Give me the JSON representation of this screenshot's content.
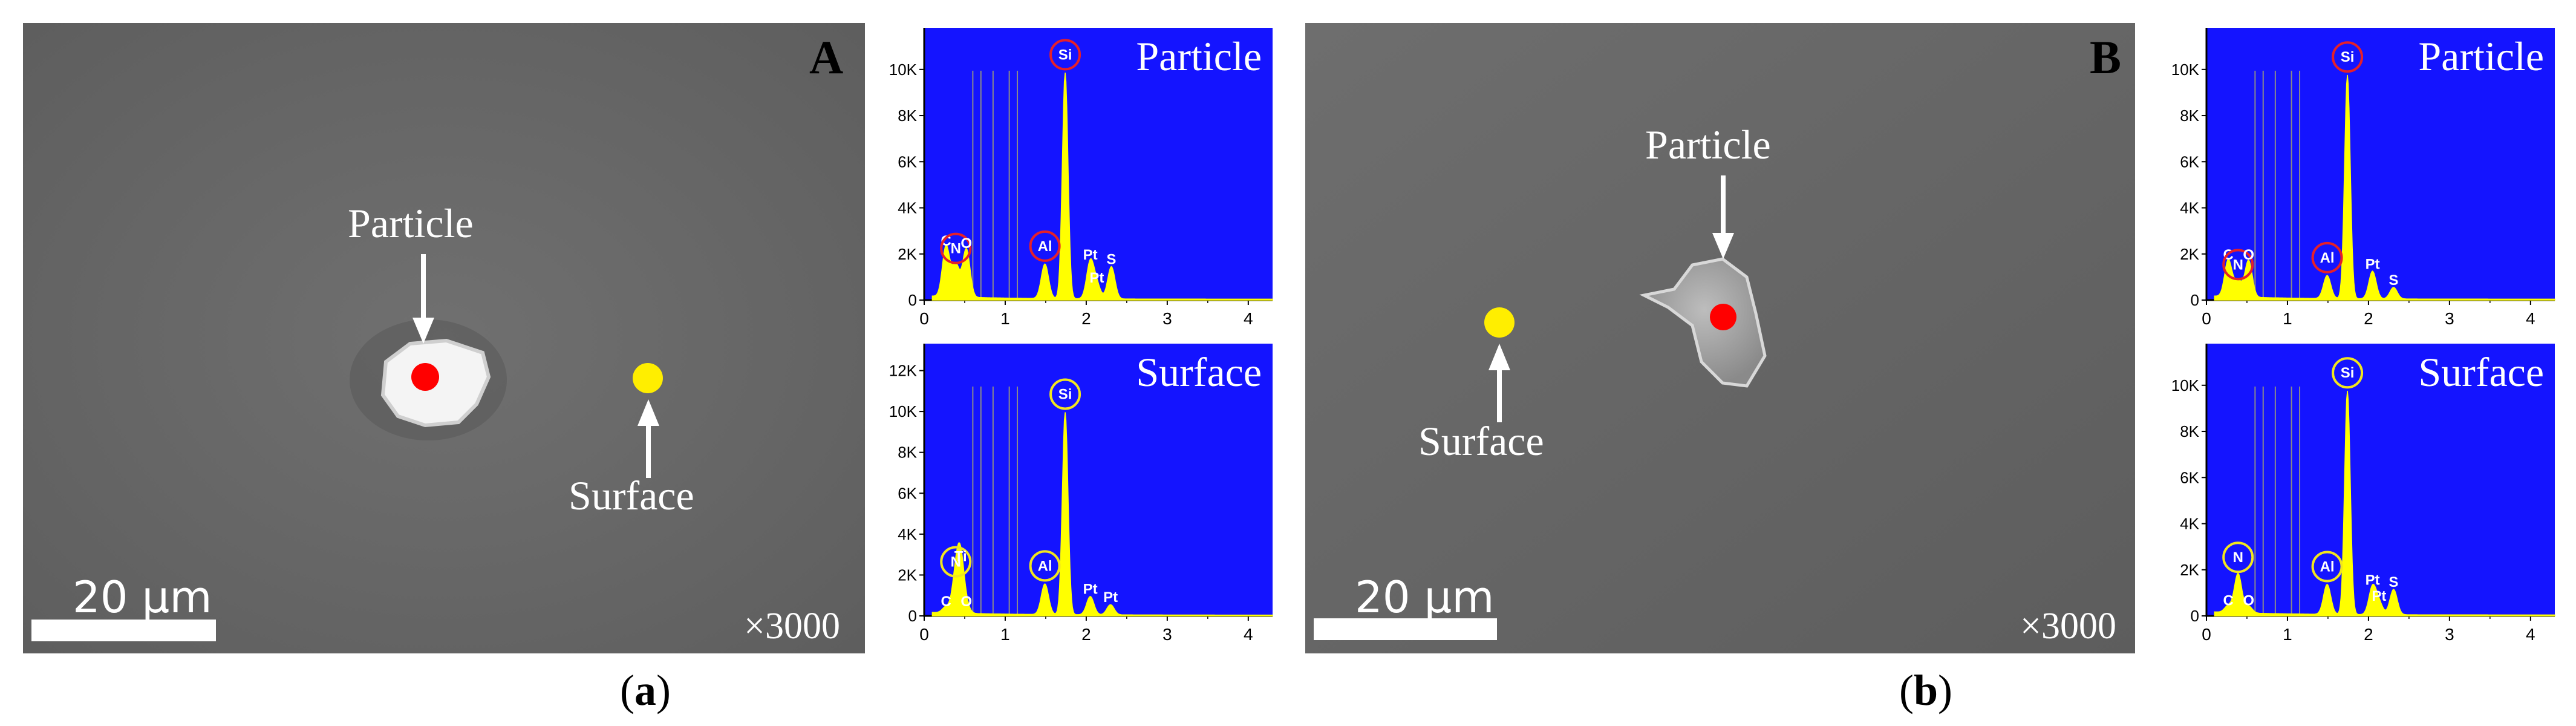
{
  "panels": [
    {
      "sem": {
        "corner_label": "A",
        "particle_label": "Particle",
        "surface_label": "Surface",
        "scale_text": "20 μm",
        "magnification": "×3000"
      },
      "caption_letter": "a",
      "eds": [
        {
          "title": "Particle",
          "marker_color": "#e5202a",
          "y_ticks": [
            "0",
            "2K",
            "4K",
            "6K",
            "8K",
            "10K"
          ],
          "x_ticks": [
            "0",
            "1",
            "2",
            "3",
            "4"
          ],
          "ymax": 11700,
          "peaks": [
            {
              "el": "C",
              "x": 0.27,
              "y": 2200,
              "circled": false
            },
            {
              "el": "N",
              "x": 0.39,
              "y": 1400,
              "circled": true
            },
            {
              "el": "O",
              "x": 0.52,
              "y": 2100,
              "circled": false
            },
            {
              "el": "Al",
              "x": 1.49,
              "y": 1500,
              "circled": true
            },
            {
              "el": "Si",
              "x": 1.74,
              "y": 9800,
              "circled": true
            },
            {
              "el": "Pt",
              "x": 2.05,
              "y": 1600,
              "circled": false
            },
            {
              "el": "S",
              "x": 2.31,
              "y": 1400,
              "circled": false
            },
            {
              "el": "Pt",
              "x": 2.13,
              "y": 600,
              "circled": false
            }
          ]
        },
        {
          "title": "Surface",
          "marker_color": "#f2e61e",
          "y_ticks": [
            "0",
            "2K",
            "4K",
            "6K",
            "8K",
            "10K",
            "12K"
          ],
          "x_ticks": [
            "0",
            "1",
            "2",
            "3",
            "4"
          ],
          "ymax": 13200,
          "peaks": [
            {
              "el": "C",
              "x": 0.27,
              "y": 300,
              "circled": false
            },
            {
              "el": "N",
              "x": 0.39,
              "y": 1700,
              "circled": true
            },
            {
              "el": "Ti",
              "x": 0.45,
              "y": 2500,
              "circled": false
            },
            {
              "el": "O",
              "x": 0.52,
              "y": 300,
              "circled": false
            },
            {
              "el": "Al",
              "x": 1.49,
              "y": 1500,
              "circled": true
            },
            {
              "el": "Si",
              "x": 1.74,
              "y": 9900,
              "circled": true
            },
            {
              "el": "Pt",
              "x": 2.05,
              "y": 900,
              "circled": false
            },
            {
              "el": "Pt",
              "x": 2.3,
              "y": 500,
              "circled": false
            }
          ]
        }
      ]
    },
    {
      "sem": {
        "corner_label": "B",
        "particle_label": "Particle",
        "surface_label": "Surface",
        "scale_text": "20 μm",
        "magnification": "×3000"
      },
      "caption_letter": "b",
      "eds": [
        {
          "title": "Particle",
          "marker_color": "#e5202a",
          "y_ticks": [
            "0",
            "2K",
            "4K",
            "6K",
            "8K",
            "10K"
          ],
          "x_ticks": [
            "0",
            "1",
            "2",
            "3",
            "4"
          ],
          "ymax": 11700,
          "peaks": [
            {
              "el": "C",
              "x": 0.27,
              "y": 1600,
              "circled": false
            },
            {
              "el": "N",
              "x": 0.39,
              "y": 700,
              "circled": true
            },
            {
              "el": "O",
              "x": 0.52,
              "y": 1600,
              "circled": false
            },
            {
              "el": "Al",
              "x": 1.49,
              "y": 1000,
              "circled": true
            },
            {
              "el": "Si",
              "x": 1.74,
              "y": 9700,
              "circled": true
            },
            {
              "el": "Pt",
              "x": 2.05,
              "y": 1200,
              "circled": false
            },
            {
              "el": "S",
              "x": 2.31,
              "y": 500,
              "circled": false
            }
          ]
        },
        {
          "title": "Surface",
          "marker_color": "#f2e61e",
          "y_ticks": [
            "0",
            "2K",
            "4K",
            "6K",
            "8K",
            "10K"
          ],
          "x_ticks": [
            "0",
            "1",
            "2",
            "3",
            "4"
          ],
          "ymax": 11700,
          "peaks": [
            {
              "el": "C",
              "x": 0.27,
              "y": 300,
              "circled": false
            },
            {
              "el": "N",
              "x": 0.39,
              "y": 1700,
              "circled": true
            },
            {
              "el": "O",
              "x": 0.52,
              "y": 300,
              "circled": false
            },
            {
              "el": "Al",
              "x": 1.49,
              "y": 1300,
              "circled": true
            },
            {
              "el": "Si",
              "x": 1.74,
              "y": 9700,
              "circled": true
            },
            {
              "el": "Pt",
              "x": 2.05,
              "y": 1200,
              "circled": false
            },
            {
              "el": "S",
              "x": 2.31,
              "y": 1100,
              "circled": false
            },
            {
              "el": "Pt",
              "x": 2.13,
              "y": 500,
              "circled": false
            }
          ]
        }
      ]
    }
  ],
  "colors": {
    "sem_background": "#6b6b6b",
    "eds_background": "#1010ff",
    "spectrum": "#ffff00",
    "particle_marker": "#ff0000",
    "surface_marker": "#ffee00"
  }
}
